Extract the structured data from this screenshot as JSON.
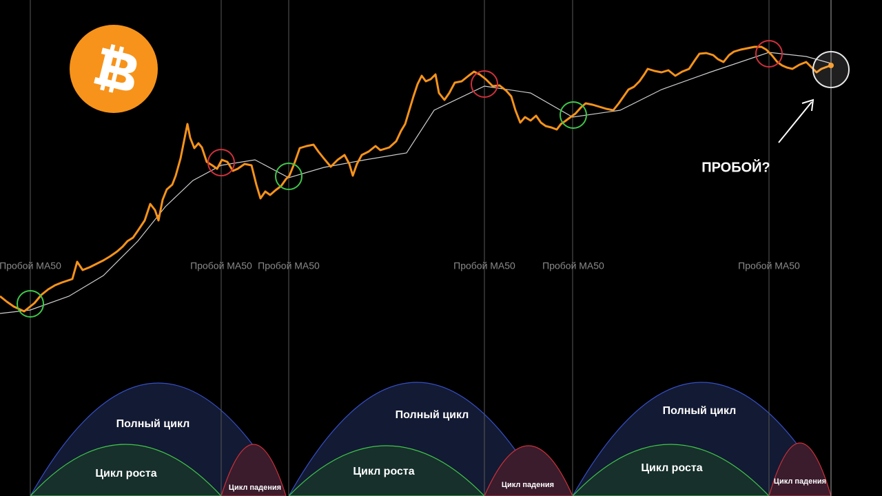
{
  "breakout_labels": [
    "Пробой MA50",
    "Пробой MA50",
    "Пробой MA50",
    "Пробой MA50",
    "Пробой MA50",
    "Пробой MA50"
  ],
  "question": "ПРОБОЙ?",
  "cycles": [
    {
      "full": "Полный цикл",
      "growth": "Цикл роста",
      "decline": "Цикл падения"
    },
    {
      "full": "Полный цикл",
      "growth": "Цикл роста",
      "decline": "Цикл падения"
    },
    {
      "full": "Полный цикл",
      "growth": "Цикл роста",
      "decline": "Цикл падения"
    }
  ]
}
